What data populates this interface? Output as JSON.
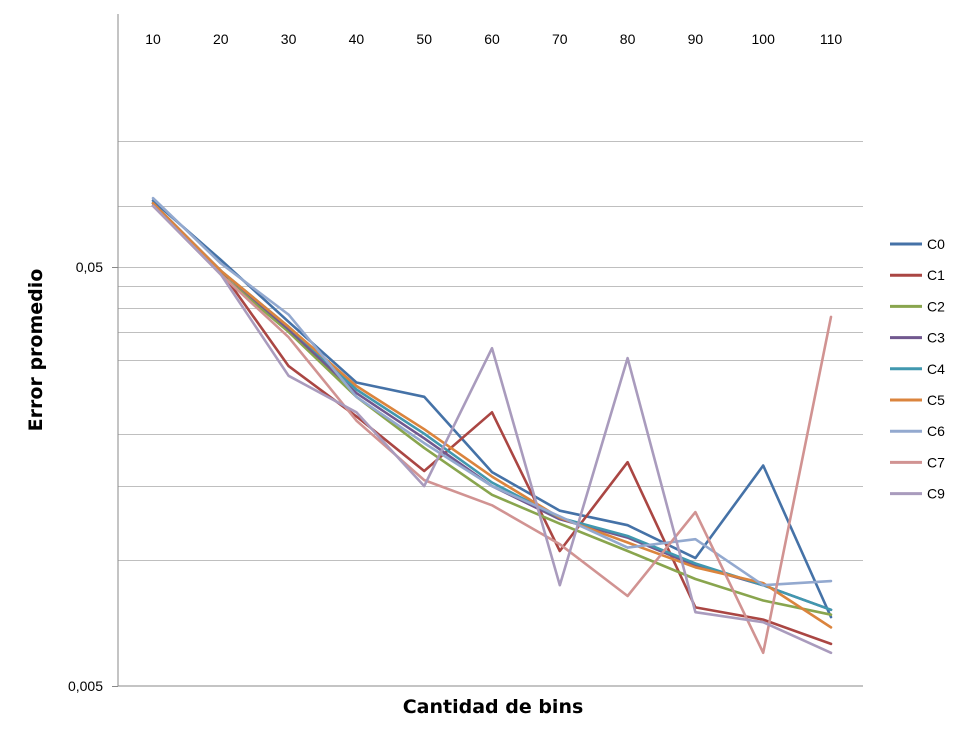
{
  "chart_data": {
    "type": "line",
    "title": "",
    "xlabel": "Cantidad de bins",
    "ylabel": "Error promedio",
    "x": [
      10,
      20,
      30,
      40,
      50,
      60,
      70,
      80,
      90,
      100,
      110
    ],
    "x_tick_labels": [
      "10",
      "20",
      "30",
      "40",
      "50",
      "60",
      "70",
      "80",
      "90",
      "100",
      "110"
    ],
    "y_scale": "log",
    "ylim": [
      0.005,
      0.11
    ],
    "y_tick_labels": [
      {
        "value": 0.05,
        "label": "0,05"
      },
      {
        "value": 0.005,
        "label": "0,005"
      }
    ],
    "y_gridlines": [
      0.01,
      0.015,
      0.02,
      0.03,
      0.035,
      0.04,
      0.045,
      0.05,
      0.07,
      0.1
    ],
    "x_axis_position": "top",
    "grid": true,
    "legend_position": "right",
    "series": [
      {
        "name": "C0",
        "color": "#4572A7",
        "values": [
          0.072,
          0.052,
          0.037,
          0.0265,
          0.0245,
          0.0162,
          0.0131,
          0.0121,
          0.0101,
          0.0168,
          0.0073
        ]
      },
      {
        "name": "C1",
        "color": "#AA4643",
        "values": [
          0.07,
          0.049,
          0.029,
          0.022,
          0.0163,
          0.0225,
          0.0105,
          0.0171,
          0.0077,
          0.0072,
          0.0063
        ]
      },
      {
        "name": "C2",
        "color": "#89A54E",
        "values": [
          0.071,
          0.048,
          0.035,
          0.0245,
          0.0185,
          0.0143,
          0.0122,
          0.0105,
          0.009,
          0.008,
          0.0074
        ]
      },
      {
        "name": "C3",
        "color": "#71588F",
        "values": [
          0.071,
          0.049,
          0.0355,
          0.025,
          0.0195,
          0.015,
          0.0125,
          0.0113,
          0.0097,
          0.0087,
          0.0076
        ]
      },
      {
        "name": "C4",
        "color": "#4198AF",
        "values": [
          0.071,
          0.049,
          0.036,
          0.0255,
          0.02,
          0.0153,
          0.0126,
          0.0114,
          0.0098,
          0.0087,
          0.0076
        ]
      },
      {
        "name": "C5",
        "color": "#DB843D",
        "values": [
          0.071,
          0.049,
          0.036,
          0.026,
          0.0205,
          0.0158,
          0.0126,
          0.011,
          0.0096,
          0.0088,
          0.0069
        ]
      },
      {
        "name": "C6",
        "color": "#93A9CF",
        "values": [
          0.073,
          0.051,
          0.0385,
          0.0245,
          0.019,
          0.015,
          0.0127,
          0.0107,
          0.0112,
          0.0087,
          0.0089
        ]
      },
      {
        "name": "C7",
        "color": "#D19392",
        "values": [
          0.07,
          0.048,
          0.034,
          0.0215,
          0.0155,
          0.0135,
          0.0109,
          0.0082,
          0.013,
          0.006,
          0.038
        ]
      },
      {
        "name": "C9",
        "color": "#A99BBD",
        "values": [
          0.07,
          0.048,
          0.0275,
          0.0225,
          0.015,
          0.032,
          0.0087,
          0.0303,
          0.0075,
          0.0071,
          0.006
        ]
      }
    ]
  }
}
